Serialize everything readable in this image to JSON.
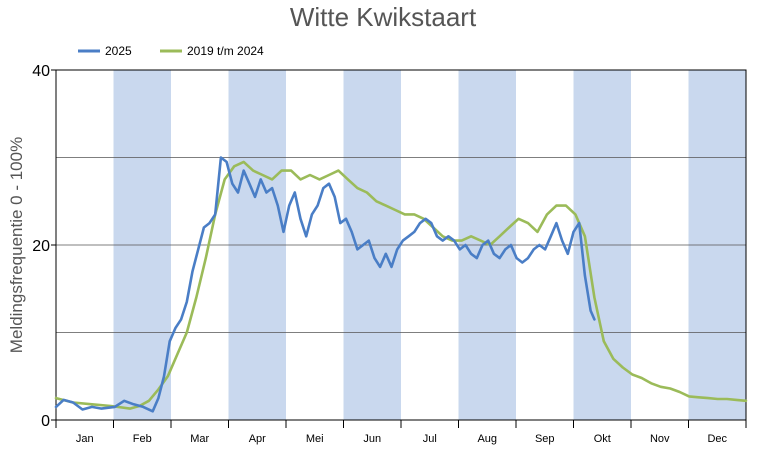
{
  "chart_data": {
    "type": "line",
    "title": "Witte Kwikstaart",
    "ylabel": "Meldingsfrequentie 0 - 100%",
    "xlabel": "",
    "ylim": [
      0,
      40
    ],
    "yticks": [
      0,
      20,
      40
    ],
    "gridlines": [
      10,
      20,
      30
    ],
    "months": [
      "Jan",
      "Feb",
      "Mar",
      "Apr",
      "Mei",
      "Jun",
      "Jul",
      "Aug",
      "Sep",
      "Okt",
      "Nov",
      "Dec"
    ],
    "shaded_months": [
      "Feb",
      "Apr",
      "Jun",
      "Aug",
      "Okt",
      "Dec"
    ],
    "legend_position": "top-left",
    "series": [
      {
        "name": "2025",
        "color": "#4a7ec6",
        "x": [
          1,
          5,
          10,
          15,
          20,
          25,
          32,
          37,
          42,
          47,
          52,
          55,
          58,
          61,
          64,
          67,
          70,
          73,
          76,
          79,
          82,
          85,
          88,
          91,
          94,
          97,
          100,
          103,
          106,
          109,
          112,
          115,
          118,
          121,
          124,
          127,
          130,
          133,
          136,
          139,
          142,
          145,
          148,
          151,
          154,
          157,
          160,
          163,
          166,
          169,
          172,
          175,
          178,
          181,
          184,
          187,
          190,
          193,
          196,
          199,
          202,
          205,
          208,
          211,
          214,
          217,
          220,
          223,
          226,
          229,
          232,
          235,
          238,
          241,
          244,
          247,
          250,
          253,
          256,
          259,
          262,
          265,
          268,
          271,
          274,
          277,
          280,
          283,
          285
        ],
        "values": [
          1.5,
          2.3,
          2.0,
          1.2,
          1.5,
          1.3,
          1.5,
          2.2,
          1.8,
          1.5,
          1.0,
          2.5,
          5.0,
          9.0,
          10.5,
          11.5,
          13.5,
          17.0,
          19.5,
          22.0,
          22.5,
          23.5,
          30.0,
          29.5,
          27.0,
          26.0,
          28.5,
          27.0,
          25.5,
          27.5,
          26.0,
          26.5,
          24.5,
          21.5,
          24.5,
          26.0,
          23.0,
          21.0,
          23.5,
          24.5,
          26.5,
          27.0,
          25.5,
          22.5,
          23.0,
          21.5,
          19.5,
          20.0,
          20.5,
          18.5,
          17.5,
          19.0,
          17.5,
          19.5,
          20.5,
          21.0,
          21.5,
          22.5,
          23.0,
          22.5,
          21.0,
          20.5,
          21.0,
          20.5,
          19.5,
          20.0,
          19.0,
          18.5,
          20.0,
          20.5,
          19.0,
          18.5,
          19.5,
          20.0,
          18.5,
          18.0,
          18.5,
          19.5,
          20.0,
          19.5,
          21.0,
          22.5,
          20.5,
          19.0,
          21.5,
          22.5,
          16.5,
          12.5,
          11.5
        ]
      },
      {
        "name": "2019 t/m 2024",
        "color": "#9bbb59",
        "x": [
          1,
          10,
          20,
          30,
          40,
          45,
          50,
          55,
          60,
          65,
          70,
          75,
          80,
          85,
          90,
          95,
          100,
          105,
          110,
          115,
          120,
          125,
          130,
          135,
          140,
          145,
          150,
          155,
          160,
          165,
          170,
          175,
          180,
          185,
          190,
          195,
          200,
          205,
          210,
          215,
          220,
          225,
          230,
          235,
          240,
          245,
          250,
          255,
          260,
          265,
          270,
          275,
          280,
          285,
          290,
          295,
          300,
          305,
          310,
          315,
          320,
          325,
          330,
          335,
          340,
          345,
          350,
          355,
          360,
          365
        ],
        "values": [
          2.5,
          2.0,
          1.8,
          1.6,
          1.3,
          1.6,
          2.2,
          3.5,
          5.0,
          7.5,
          10.0,
          14.0,
          18.5,
          23.5,
          27.5,
          29.0,
          29.5,
          28.5,
          28.0,
          27.5,
          28.5,
          28.5,
          27.5,
          28.0,
          27.5,
          28.0,
          28.5,
          27.5,
          26.5,
          26.0,
          25.0,
          24.5,
          24.0,
          23.5,
          23.5,
          23.0,
          22.0,
          21.0,
          20.5,
          20.5,
          21.0,
          20.5,
          20.0,
          21.0,
          22.0,
          23.0,
          22.5,
          21.5,
          23.5,
          24.5,
          24.5,
          23.5,
          21.0,
          14.0,
          9.0,
          7.0,
          6.0,
          5.2,
          4.8,
          4.2,
          3.8,
          3.6,
          3.2,
          2.7,
          2.6,
          2.5,
          2.4,
          2.4,
          2.3,
          2.2
        ]
      }
    ]
  }
}
